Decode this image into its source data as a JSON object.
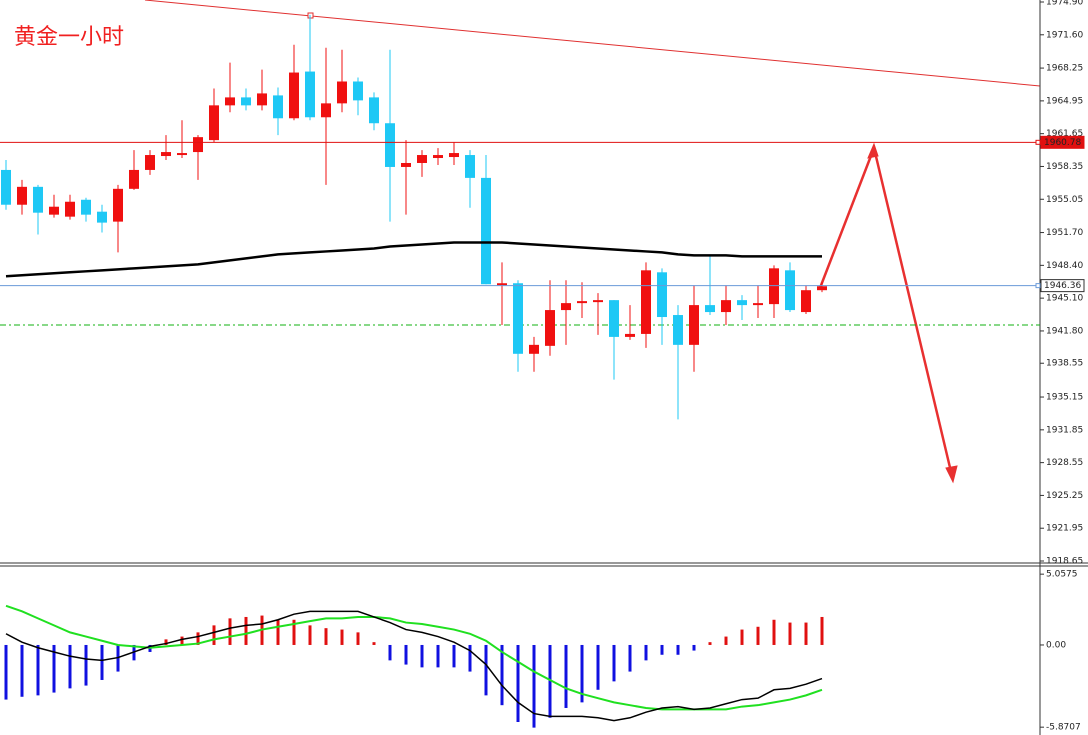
{
  "chart_data": [
    {
      "type": "candlestick",
      "title": "黄金一小时",
      "open": [
        1958.0,
        1954.5,
        1956.3,
        1953.5,
        1953.3,
        1955.0,
        1953.8,
        1952.8,
        1956.1,
        1958.0,
        1959.4,
        1959.5,
        1959.8,
        1961.0,
        1964.5,
        1965.3,
        1964.5,
        1965.5,
        1963.2,
        1967.9,
        1963.3,
        1964.7,
        1966.9,
        1965.3,
        1962.7,
        1958.3,
        1958.7,
        1959.2,
        1959.3,
        1959.5,
        1957.2,
        1946.4,
        1946.6,
        1939.5,
        1940.3,
        1943.9,
        1944.6,
        1944.7,
        1944.9,
        1941.2,
        1941.5,
        1947.7,
        1943.4,
        1940.4,
        1944.4,
        1943.7,
        1944.9,
        1944.4,
        1944.5,
        1947.9,
        1943.7,
        1945.9
      ],
      "high": [
        1959.0,
        1957.0,
        1956.5,
        1955.5,
        1955.5,
        1955.2,
        1954.5,
        1956.5,
        1960.0,
        1960.0,
        1961.5,
        1963.0,
        1961.5,
        1966.2,
        1968.8,
        1966.2,
        1968.1,
        1966.3,
        1970.6,
        1973.6,
        1970.3,
        1970.1,
        1967.3,
        1965.8,
        1970.1,
        1961.0,
        1960.0,
        1960.2,
        1960.8,
        1960.0,
        1959.5,
        1948.7,
        1946.9,
        1941.2,
        1946.9,
        1946.9,
        1946.7,
        1945.6,
        1944.9,
        1944.4,
        1948.7,
        1948.1,
        1944.4,
        1946.4,
        1949.4,
        1946.4,
        1945.4,
        1946.4,
        1948.4,
        1948.7,
        1946.4,
        1946.7
      ],
      "low": [
        1954.0,
        1953.5,
        1951.5,
        1953.2,
        1953.0,
        1952.8,
        1951.7,
        1949.7,
        1956.0,
        1957.5,
        1959.0,
        1959.2,
        1957.0,
        1960.8,
        1963.8,
        1964.0,
        1964.0,
        1961.5,
        1963.0,
        1963.0,
        1956.5,
        1963.8,
        1963.5,
        1962.0,
        1952.8,
        1953.5,
        1957.3,
        1958.5,
        1958.5,
        1954.2,
        1946.5,
        1942.4,
        1937.7,
        1937.7,
        1939.3,
        1940.4,
        1943.1,
        1941.4,
        1936.9,
        1940.9,
        1940.1,
        1940.4,
        1932.9,
        1937.7,
        1943.4,
        1942.4,
        1942.9,
        1943.1,
        1943.1,
        1943.7,
        1943.5,
        1945.7
      ],
      "close": [
        1954.5,
        1956.3,
        1953.7,
        1954.3,
        1954.8,
        1953.5,
        1952.7,
        1956.1,
        1958.0,
        1959.5,
        1959.8,
        1959.7,
        1961.3,
        1964.5,
        1965.3,
        1964.5,
        1965.7,
        1963.2,
        1967.8,
        1963.3,
        1964.7,
        1966.9,
        1965.0,
        1962.7,
        1958.3,
        1958.7,
        1959.5,
        1959.5,
        1959.7,
        1957.2,
        1946.5,
        1946.6,
        1939.5,
        1940.4,
        1943.9,
        1944.6,
        1944.8,
        1944.9,
        1941.2,
        1941.5,
        1947.9,
        1943.2,
        1940.4,
        1944.4,
        1943.7,
        1944.9,
        1944.4,
        1944.6,
        1948.1,
        1943.9,
        1945.9,
        1946.3
      ],
      "up_color": "#f01010",
      "down_color": "#1ec8f5",
      "moving_average": {
        "color": "#000000",
        "values": [
          1947.3,
          1947.4,
          1947.5,
          1947.6,
          1947.7,
          1947.8,
          1947.9,
          1948.0,
          1948.1,
          1948.2,
          1948.3,
          1948.4,
          1948.5,
          1948.7,
          1948.9,
          1949.1,
          1949.3,
          1949.5,
          1949.6,
          1949.7,
          1949.8,
          1949.9,
          1950.0,
          1950.1,
          1950.3,
          1950.4,
          1950.5,
          1950.6,
          1950.7,
          1950.7,
          1950.7,
          1950.7,
          1950.6,
          1950.5,
          1950.4,
          1950.3,
          1950.2,
          1950.1,
          1950.0,
          1949.9,
          1949.8,
          1949.7,
          1949.5,
          1949.4,
          1949.4,
          1949.4,
          1949.3,
          1949.3,
          1949.3,
          1949.3,
          1949.3,
          1949.3
        ]
      },
      "price_lines": [
        {
          "value": 1960.78,
          "color": "#e01010"
        },
        {
          "value": 1946.36,
          "color": "#6a9ad8"
        }
      ],
      "support_level": {
        "value": 1942.4,
        "color": "#10b010"
      },
      "ylim": [
        1918.45,
        1975.1
      ],
      "yticks": [
        {
          "value": 1974.9,
          "label": "1974.90"
        },
        {
          "value": 1971.6,
          "label": "1971.60"
        },
        1968.25,
        1964.95,
        1961.65,
        1958.35,
        1955.05,
        {
          "value": 1951.7,
          "label": "1951.70"
        },
        {
          "value": 1948.4,
          "label": "1948.40"
        },
        {
          "value": 1945.1,
          "label": "1945.10"
        },
        {
          "value": 1941.8,
          "label": "1941.80"
        },
        1938.55,
        1935.15,
        1931.85,
        1928.55,
        1925.25,
        1921.95,
        1918.65
      ]
    },
    {
      "type": "macd",
      "histogram": [
        -3.9,
        -3.7,
        -3.6,
        -3.4,
        -3.1,
        -2.9,
        -2.5,
        -1.9,
        -1.1,
        -0.5,
        0.4,
        0.6,
        0.9,
        1.4,
        1.9,
        2.0,
        2.1,
        1.8,
        1.8,
        1.4,
        1.2,
        1.1,
        0.9,
        0.2,
        -1.1,
        -1.4,
        -1.6,
        -1.6,
        -1.6,
        -1.9,
        -3.6,
        -4.3,
        -5.5,
        -5.9,
        -5.2,
        -4.5,
        -4.1,
        -3.2,
        -2.6,
        -1.9,
        -1.1,
        -0.7,
        -0.7,
        -0.4,
        0.2,
        0.6,
        1.1,
        1.3,
        1.8,
        1.6,
        1.6,
        2.0
      ],
      "positive_color": "#e01010",
      "negative_color": "#1010e0",
      "macd": {
        "color": "#000000",
        "values": [
          0.8,
          0.2,
          -0.2,
          -0.5,
          -0.8,
          -1.0,
          -1.1,
          -0.9,
          -0.5,
          -0.1,
          0.1,
          0.4,
          0.6,
          0.9,
          1.2,
          1.4,
          1.5,
          1.8,
          2.2,
          2.4,
          2.4,
          2.4,
          2.4,
          2.0,
          1.6,
          1.1,
          0.9,
          0.6,
          0.2,
          -0.4,
          -1.4,
          -2.9,
          -4.1,
          -4.9,
          -5.1,
          -5.1,
          -5.1,
          -5.2,
          -5.4,
          -5.2,
          -4.8,
          -4.5,
          -4.4,
          -4.6,
          -4.5,
          -4.2,
          -3.9,
          -3.8,
          -3.2,
          -3.1,
          -2.8,
          -2.4
        ]
      },
      "signal": {
        "color": "#20e020",
        "values": [
          2.8,
          2.4,
          1.9,
          1.4,
          0.9,
          0.6,
          0.3,
          0.0,
          -0.1,
          -0.2,
          -0.1,
          0.0,
          0.1,
          0.4,
          0.6,
          0.8,
          1.1,
          1.3,
          1.5,
          1.7,
          1.9,
          1.9,
          2.0,
          2.0,
          1.9,
          1.6,
          1.5,
          1.3,
          1.1,
          0.8,
          0.3,
          -0.5,
          -1.2,
          -1.9,
          -2.5,
          -3.1,
          -3.5,
          -3.8,
          -4.1,
          -4.3,
          -4.5,
          -4.6,
          -4.6,
          -4.6,
          -4.6,
          -4.6,
          -4.4,
          -4.3,
          -4.1,
          -3.9,
          -3.6,
          -3.2
        ]
      },
      "ylim": [
        -6.43,
        5.64
      ],
      "yticks": [
        5.0575,
        {
          "value": 0,
          "label": "0.00"
        },
        -5.8707
      ]
    }
  ]
}
